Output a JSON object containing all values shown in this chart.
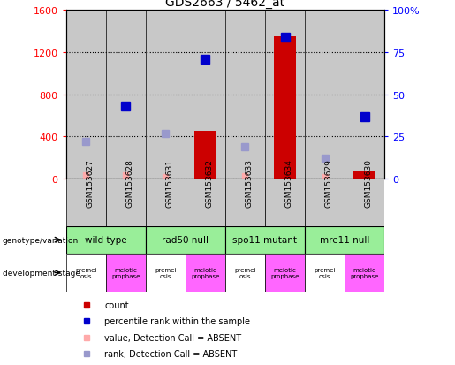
{
  "title": "GDS2663 / 5462_at",
  "samples": [
    "GSM153627",
    "GSM153628",
    "GSM153631",
    "GSM153632",
    "GSM153633",
    "GSM153634",
    "GSM153629",
    "GSM153630"
  ],
  "count_values": [
    30,
    30,
    18,
    450,
    22,
    1350,
    18,
    65
  ],
  "count_absent": [
    true,
    true,
    true,
    false,
    true,
    false,
    true,
    false
  ],
  "rank_raw": [
    350,
    690,
    430,
    1130,
    300,
    1340,
    195,
    590
  ],
  "rank_absent": [
    true,
    false,
    true,
    false,
    true,
    false,
    true,
    false
  ],
  "genotype_groups": [
    {
      "label": "wild type",
      "start": 0,
      "end": 2
    },
    {
      "label": "rad50 null",
      "start": 2,
      "end": 4
    },
    {
      "label": "spo11 mutant",
      "start": 4,
      "end": 6
    },
    {
      "label": "mre11 null",
      "start": 6,
      "end": 8
    }
  ],
  "dev_stage_labels": [
    "premei\nosis",
    "meiotic\nprophase",
    "premei\nosis",
    "meiotic\nprophase",
    "premei\nosis",
    "meiotic\nprophase",
    "premei\nosis",
    "meiotic\nprophase"
  ],
  "dev_colors": [
    "#ffffff",
    "#ff66ff",
    "#ffffff",
    "#ff66ff",
    "#ffffff",
    "#ff66ff",
    "#ffffff",
    "#ff66ff"
  ],
  "ylim_left": [
    0,
    1600
  ],
  "ylim_right": [
    0,
    100
  ],
  "yticks_left": [
    0,
    400,
    800,
    1200,
    1600
  ],
  "yticks_right": [
    0,
    25,
    50,
    75,
    100
  ],
  "bar_color": "#cc0000",
  "rank_present_color": "#0000cc",
  "rank_absent_color": "#9999cc",
  "count_absent_color": "#ffaaaa",
  "geno_bg_color": "#99ee99",
  "sample_bg_color": "#c8c8c8",
  "border_color": "#000000"
}
